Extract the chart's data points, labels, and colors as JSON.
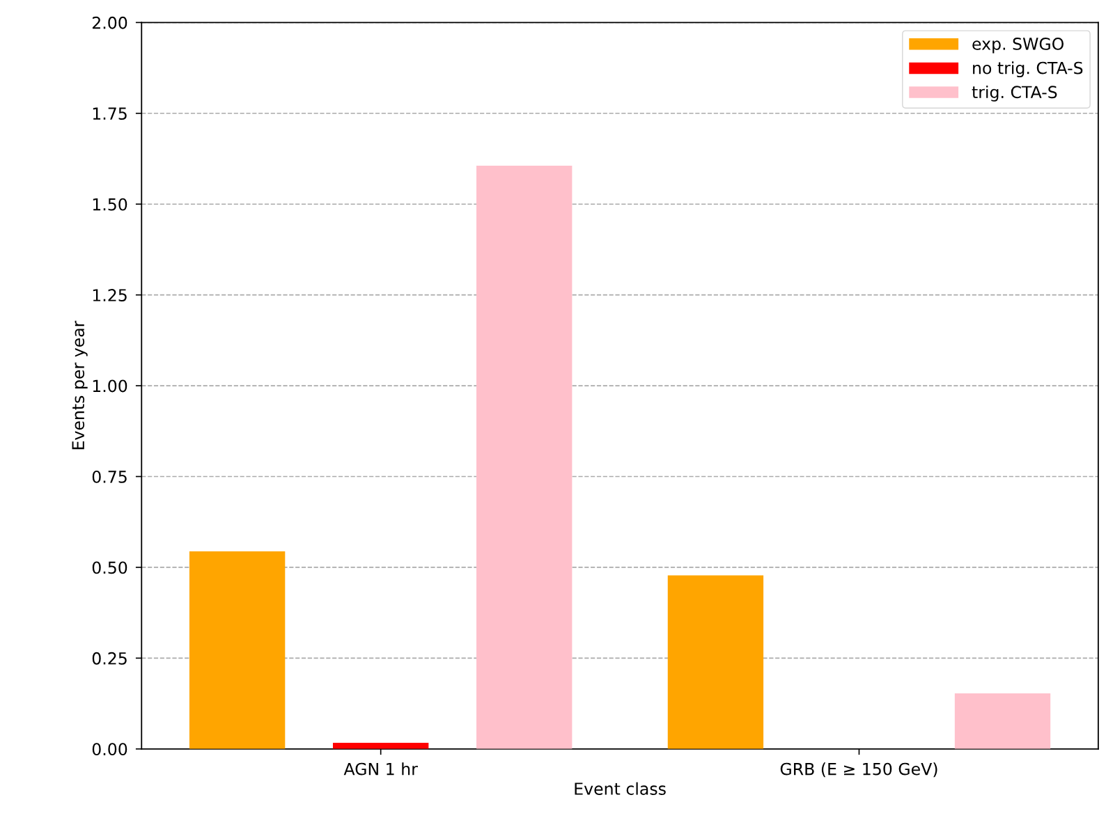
{
  "chart_data": {
    "type": "bar",
    "xlabel": "Event class",
    "ylabel": "Events per year",
    "categories": [
      "AGN 1 hr",
      "GRB (E ≥ 150 GeV)"
    ],
    "series": [
      {
        "name": "exp. SWGO",
        "color": "#ffa500",
        "values": [
          0.544,
          0.478
        ]
      },
      {
        "name": "no trig. CTA-S",
        "color": "#ff0000",
        "values": [
          0.017,
          0
        ]
      },
      {
        "name": "trig. CTA-S",
        "color": "#ffc0cb",
        "values": [
          1.606,
          0.153
        ]
      }
    ],
    "ylim": [
      0,
      2.0
    ],
    "yticks": [
      {
        "value": 0,
        "label": "0.00"
      },
      {
        "value": 0.25,
        "label": "0.25"
      },
      {
        "value": 0.5,
        "label": "0.50"
      },
      {
        "value": 0.75,
        "label": "0.75"
      },
      {
        "value": 1.0,
        "label": "1.00"
      },
      {
        "value": 1.25,
        "label": "1.25"
      },
      {
        "value": 1.5,
        "label": "1.50"
      },
      {
        "value": 1.75,
        "label": "1.75"
      },
      {
        "value": 2.0,
        "label": "2.00"
      }
    ],
    "grid": "y",
    "legend": "top right"
  }
}
